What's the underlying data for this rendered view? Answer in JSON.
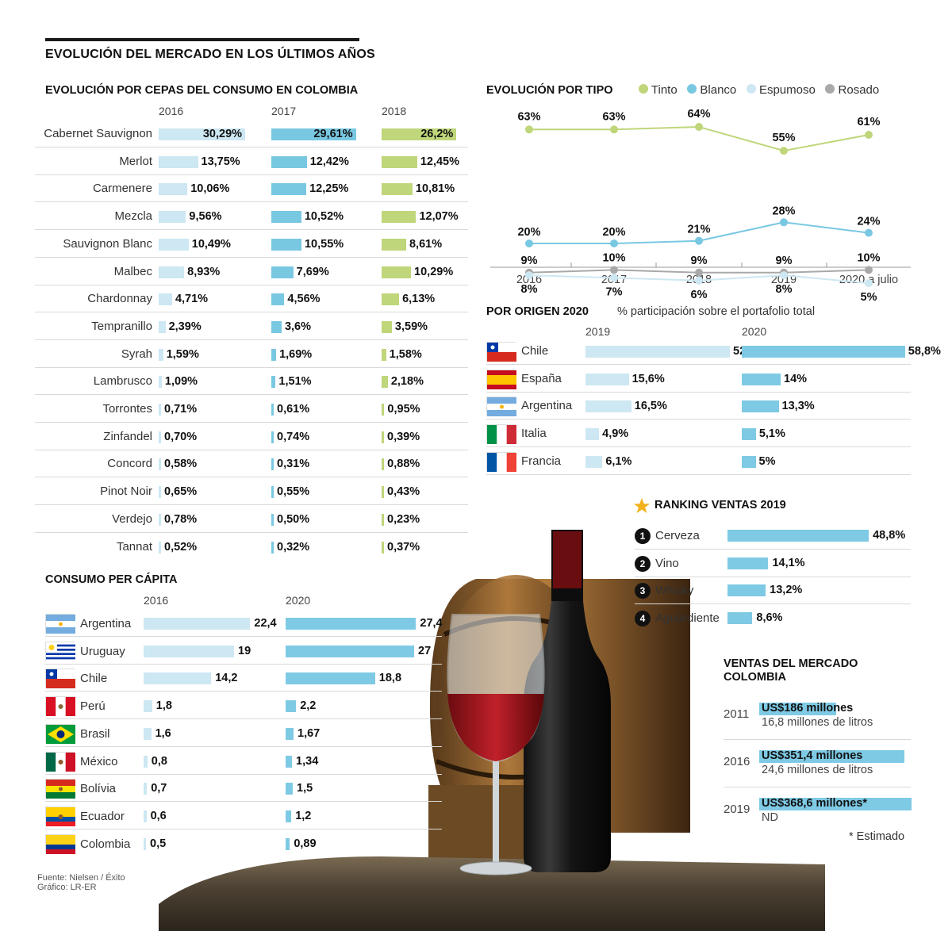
{
  "main_title": "EVOLUCIÓN DEL MERCADO EN LOS ÚLTIMOS AÑOS",
  "colors": {
    "c2016": "#cde7f3",
    "c2017": "#79c8e2",
    "c2018": "#bfd67a",
    "tinto": "#bfd67a",
    "blanco": "#79c8e2",
    "espumoso": "#cde7f3",
    "rosado": "#a9a9a9"
  },
  "cepas": {
    "title": "EVOLUCIÓN POR CEPAS DEL CONSUMO EN COLOMBIA",
    "years": [
      "2016",
      "2017",
      "2018"
    ],
    "rows": [
      {
        "name": "Cabernet Sauvignon",
        "v": [
          30.29,
          29.61,
          26.2
        ],
        "l": [
          "30,29%",
          "29,61%",
          "26,2%"
        ]
      },
      {
        "name": "Merlot",
        "v": [
          13.75,
          12.42,
          12.45
        ],
        "l": [
          "13,75%",
          "12,42%",
          "12,45%"
        ]
      },
      {
        "name": "Carmenere",
        "v": [
          10.06,
          12.25,
          10.81
        ],
        "l": [
          "10,06%",
          "12,25%",
          "10,81%"
        ]
      },
      {
        "name": "Mezcla",
        "v": [
          9.56,
          10.52,
          12.07
        ],
        "l": [
          "9,56%",
          "10,52%",
          "12,07%"
        ]
      },
      {
        "name": "Sauvignon Blanc",
        "v": [
          10.49,
          10.55,
          8.61
        ],
        "l": [
          "10,49%",
          "10,55%",
          "8,61%"
        ]
      },
      {
        "name": "Malbec",
        "v": [
          8.93,
          7.69,
          10.29
        ],
        "l": [
          "8,93%",
          "7,69%",
          "10,29%"
        ]
      },
      {
        "name": "Chardonnay",
        "v": [
          4.71,
          4.56,
          6.13
        ],
        "l": [
          "4,71%",
          "4,56%",
          "6,13%"
        ]
      },
      {
        "name": "Tempranillo",
        "v": [
          2.39,
          3.6,
          3.59
        ],
        "l": [
          "2,39%",
          "3,6%",
          "3,59%"
        ]
      },
      {
        "name": "Syrah",
        "v": [
          1.59,
          1.69,
          1.58
        ],
        "l": [
          "1,59%",
          "1,69%",
          "1,58%"
        ]
      },
      {
        "name": "Lambrusco",
        "v": [
          1.09,
          1.51,
          2.18
        ],
        "l": [
          "1,09%",
          "1,51%",
          "2,18%"
        ]
      },
      {
        "name": "Torrontes",
        "v": [
          0.71,
          0.61,
          0.95
        ],
        "l": [
          "0,71%",
          "0,61%",
          "0,95%"
        ]
      },
      {
        "name": "Zinfandel",
        "v": [
          0.7,
          0.74,
          0.39
        ],
        "l": [
          "0,70%",
          "0,74%",
          "0,39%"
        ]
      },
      {
        "name": "Concord",
        "v": [
          0.58,
          0.31,
          0.88
        ],
        "l": [
          "0,58%",
          "0,31%",
          "0,88%"
        ]
      },
      {
        "name": "Pinot Noir",
        "v": [
          0.65,
          0.55,
          0.43
        ],
        "l": [
          "0,65%",
          "0,55%",
          "0,43%"
        ]
      },
      {
        "name": "Verdejo",
        "v": [
          0.78,
          0.5,
          0.23
        ],
        "l": [
          "0,78%",
          "0,50%",
          "0,23%"
        ]
      },
      {
        "name": "Tannat",
        "v": [
          0.52,
          0.32,
          0.37
        ],
        "l": [
          "0,52%",
          "0,32%",
          "0,37%"
        ]
      }
    ]
  },
  "tipo": {
    "title": "EVOLUCIÓN POR TIPO",
    "legend": [
      "Tinto",
      "Blanco",
      "Espumoso",
      "Rosado"
    ],
    "x": [
      "2016",
      "2017",
      "2018",
      "2019",
      "2020 a julio"
    ],
    "tinto": [
      63,
      63,
      64,
      55,
      61
    ],
    "blanco": [
      20,
      20,
      21,
      28,
      24
    ],
    "espumoso": [
      8,
      7,
      6,
      8,
      5
    ],
    "rosado": [
      9,
      10,
      9,
      9,
      10
    ],
    "tinto_l": [
      "63%",
      "63%",
      "64%",
      "55%",
      "61%"
    ],
    "blanco_l": [
      "20%",
      "20%",
      "21%",
      "28%",
      "24%"
    ],
    "espumoso_l": [
      "8%",
      "7%",
      "6%",
      "8%",
      "5%"
    ],
    "rosado_l": [
      "9%",
      "10%",
      "9%",
      "9%",
      "10%"
    ]
  },
  "origen": {
    "title": "POR ORIGEN 2020",
    "subtitle": "% participación sobre el portafolio total",
    "years": [
      "2019",
      "2020"
    ],
    "rows": [
      {
        "name": "Chile",
        "flag": "chile",
        "v": [
          52,
          58.8
        ],
        "l": [
          "52%",
          "58,8%"
        ]
      },
      {
        "name": "España",
        "flag": "espana",
        "v": [
          15.6,
          14
        ],
        "l": [
          "15,6%",
          "14%"
        ]
      },
      {
        "name": "Argentina",
        "flag": "argentina",
        "v": [
          16.5,
          13.3
        ],
        "l": [
          "16,5%",
          "13,3%"
        ]
      },
      {
        "name": "Italia",
        "flag": "italia",
        "v": [
          4.9,
          5.1
        ],
        "l": [
          "4,9%",
          "5,1%"
        ]
      },
      {
        "name": "Francia",
        "flag": "francia",
        "v": [
          6.1,
          5
        ],
        "l": [
          "6,1%",
          "5%"
        ]
      }
    ]
  },
  "ranking": {
    "title": "RANKING VENTAS 2019",
    "rows": [
      {
        "n": "1",
        "name": "Cerveza",
        "v": 48.8,
        "l": "48,8%"
      },
      {
        "n": "2",
        "name": "Vino",
        "v": 14.1,
        "l": "14,1%"
      },
      {
        "n": "3",
        "name": "Whisky",
        "v": 13.2,
        "l": "13,2%"
      },
      {
        "n": "4",
        "name": "Aguardiente",
        "v": 8.6,
        "l": "8,6%"
      }
    ]
  },
  "ventas": {
    "title1": "VENTAS DEL MERCADO",
    "title2": "COLOMBIA",
    "rows": [
      {
        "year": "2011",
        "v": 186,
        "amount": "US$186 millones",
        "sub": "16,8 millones de litros"
      },
      {
        "year": "2016",
        "v": 351.4,
        "amount": "US$351,4 millones",
        "sub": "24,6 millones de litros"
      },
      {
        "year": "2019",
        "v": 368.6,
        "amount": "US$368,6 millones*",
        "sub": "ND"
      }
    ],
    "note": "* Estimado"
  },
  "percapita": {
    "title": "CONSUMO PER CÁPITA",
    "years": [
      "2016",
      "2020"
    ],
    "rows": [
      {
        "name": "Argentina",
        "flag": "argentina",
        "v": [
          22.4,
          27.4
        ],
        "l": [
          "22,4",
          "27,4"
        ]
      },
      {
        "name": "Uruguay",
        "flag": "uruguay",
        "v": [
          19,
          27
        ],
        "l": [
          "19",
          "27"
        ]
      },
      {
        "name": "Chile",
        "flag": "chile",
        "v": [
          14.2,
          18.8
        ],
        "l": [
          "14,2",
          "18,8"
        ]
      },
      {
        "name": "Perú",
        "flag": "peru",
        "v": [
          1.8,
          2.2
        ],
        "l": [
          "1,8",
          "2,2"
        ]
      },
      {
        "name": "Brasil",
        "flag": "brasil",
        "v": [
          1.6,
          1.67
        ],
        "l": [
          "1,6",
          "1,67"
        ]
      },
      {
        "name": "México",
        "flag": "mexico",
        "v": [
          0.8,
          1.34
        ],
        "l": [
          "0,8",
          "1,34"
        ]
      },
      {
        "name": "Bolívia",
        "flag": "bolivia",
        "v": [
          0.7,
          1.5
        ],
        "l": [
          "0,7",
          "1,5"
        ]
      },
      {
        "name": "Ecuador",
        "flag": "ecuador",
        "v": [
          0.6,
          1.2
        ],
        "l": [
          "0,6",
          "1,2"
        ]
      },
      {
        "name": "Colombia",
        "flag": "colombia",
        "v": [
          0.5,
          0.89
        ],
        "l": [
          "0,5",
          "0,89"
        ]
      }
    ]
  },
  "footer": {
    "source": "Fuente: Nielsen / Éxito",
    "credit": "Gráfico: LR-ER"
  },
  "chart_data": [
    {
      "type": "bar",
      "title": "EVOLUCIÓN POR CEPAS DEL CONSUMO EN COLOMBIA",
      "categories": [
        "Cabernet Sauvignon",
        "Merlot",
        "Carmenere",
        "Mezcla",
        "Sauvignon Blanc",
        "Malbec",
        "Chardonnay",
        "Tempranillo",
        "Syrah",
        "Lambrusco",
        "Torrontes",
        "Zinfandel",
        "Concord",
        "Pinot Noir",
        "Verdejo",
        "Tannat"
      ],
      "series": [
        {
          "name": "2016",
          "values": [
            30.29,
            13.75,
            10.06,
            9.56,
            10.49,
            8.93,
            4.71,
            2.39,
            1.59,
            1.09,
            0.71,
            0.7,
            0.58,
            0.65,
            0.78,
            0.52
          ]
        },
        {
          "name": "2017",
          "values": [
            29.61,
            12.42,
            12.25,
            10.52,
            10.55,
            7.69,
            4.56,
            3.6,
            1.69,
            1.51,
            0.61,
            0.74,
            0.31,
            0.55,
            0.5,
            0.32
          ]
        },
        {
          "name": "2018",
          "values": [
            26.2,
            12.45,
            10.81,
            12.07,
            8.61,
            10.29,
            6.13,
            3.59,
            1.58,
            2.18,
            0.95,
            0.39,
            0.88,
            0.43,
            0.23,
            0.37
          ]
        }
      ]
    },
    {
      "type": "line",
      "title": "EVOLUCIÓN POR TIPO",
      "x": [
        "2016",
        "2017",
        "2018",
        "2019",
        "2020 a julio"
      ],
      "series": [
        {
          "name": "Tinto",
          "values": [
            63,
            63,
            64,
            55,
            61
          ]
        },
        {
          "name": "Blanco",
          "values": [
            20,
            20,
            21,
            28,
            24
          ]
        },
        {
          "name": "Espumoso",
          "values": [
            8,
            7,
            6,
            8,
            5
          ]
        },
        {
          "name": "Rosado",
          "values": [
            9,
            10,
            9,
            9,
            10
          ]
        }
      ]
    },
    {
      "type": "bar",
      "title": "POR ORIGEN 2020",
      "categories": [
        "Chile",
        "España",
        "Argentina",
        "Italia",
        "Francia"
      ],
      "series": [
        {
          "name": "2019",
          "values": [
            52,
            15.6,
            16.5,
            4.9,
            6.1
          ]
        },
        {
          "name": "2020",
          "values": [
            58.8,
            14,
            13.3,
            5.1,
            5
          ]
        }
      ]
    },
    {
      "type": "bar",
      "title": "RANKING VENTAS 2019",
      "categories": [
        "Cerveza",
        "Vino",
        "Whisky",
        "Aguardiente"
      ],
      "values": [
        48.8,
        14.1,
        13.2,
        8.6
      ]
    },
    {
      "type": "bar",
      "title": "VENTAS DEL MERCADO COLOMBIA",
      "categories": [
        "2011",
        "2016",
        "2019"
      ],
      "values": [
        186,
        351.4,
        368.6
      ]
    },
    {
      "type": "bar",
      "title": "CONSUMO PER CÁPITA",
      "categories": [
        "Argentina",
        "Uruguay",
        "Chile",
        "Perú",
        "Brasil",
        "México",
        "Bolívia",
        "Ecuador",
        "Colombia"
      ],
      "series": [
        {
          "name": "2016",
          "values": [
            22.4,
            19,
            14.2,
            1.8,
            1.6,
            0.8,
            0.7,
            0.6,
            0.5
          ]
        },
        {
          "name": "2020",
          "values": [
            27.4,
            27,
            18.8,
            2.2,
            1.67,
            1.34,
            1.5,
            1.2,
            0.89
          ]
        }
      ]
    }
  ]
}
